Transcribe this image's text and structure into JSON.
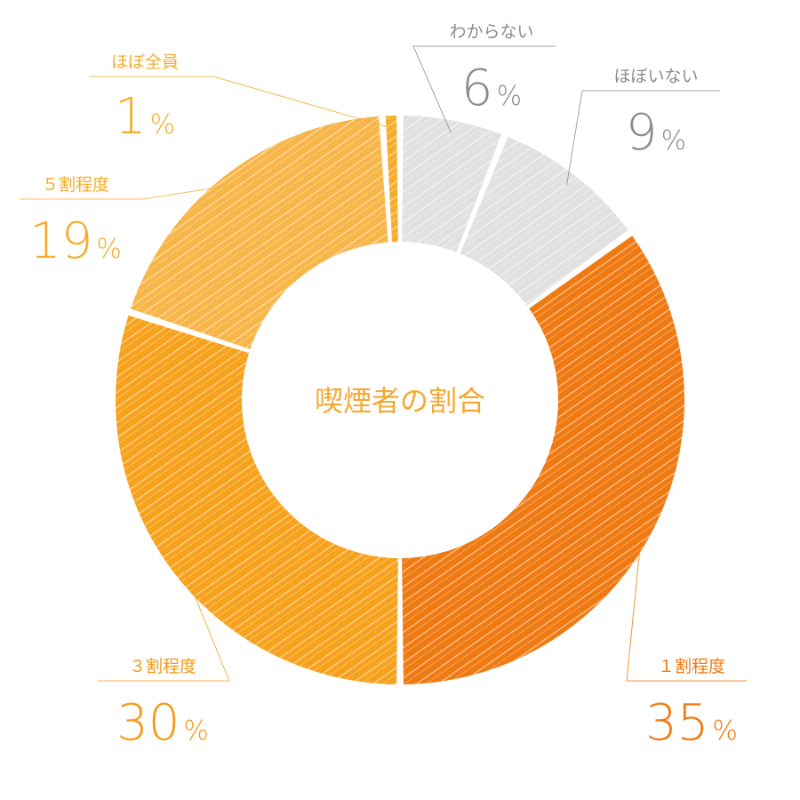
{
  "chart_data": {
    "type": "pie",
    "title": "喫煙者の割合",
    "unit": "%",
    "categories": [
      "わからない",
      "ほぼいない",
      "１割程度",
      "３割程度",
      "５割程度",
      "ほぼ全員"
    ],
    "values": [
      6,
      9,
      35,
      30,
      19,
      1
    ],
    "value_labels": [
      "6",
      "9",
      "35",
      "30",
      "19",
      "1"
    ],
    "colors": [
      "#e1e1e1",
      "#e1e1e1",
      "#f07a12",
      "#f7a21c",
      "#f8b548",
      "#f7ad2a"
    ],
    "label_colors": [
      "#8c8c8c",
      "#8c8c8c",
      "#f07a12",
      "#f49b1a",
      "#f6ad2c",
      "#f6ad2c"
    ],
    "legend": "none",
    "style": "donut-hand-drawn"
  }
}
